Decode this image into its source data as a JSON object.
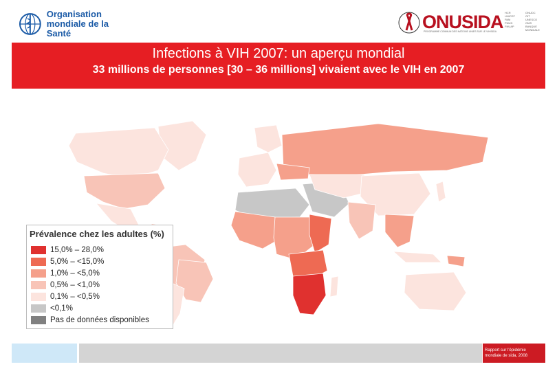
{
  "logos": {
    "who_line1": "Organisation",
    "who_line2": "mondiale de la Santé",
    "unaids_wordmark": "ONUSIDA",
    "unaids_tagline": "PROGRAMME COMMUN DES NATIONS UNIES SUR LE VIH/SIDA",
    "unaids_sponsors": [
      "HCR",
      "UNICEF",
      "PAM",
      "PNUD",
      "FNUAP",
      "ONUDC",
      "OIT",
      "UNESCO",
      "OMS",
      "BANQUE MONDIALE"
    ]
  },
  "banner": {
    "title": "Infections à VIH 2007: un aperçu mondial",
    "subtitle": "33 millions de personnes [30 – 36 millions] vivaient avec le VIH en 2007"
  },
  "legend": {
    "title": "Prévalence chez les adultes (%)",
    "items": [
      {
        "label": "15,0% – 28,0%",
        "color": "#e0312f"
      },
      {
        "label": "5,0% – <15,0%",
        "color": "#ee6a53"
      },
      {
        "label": "1,0% – <5,0%",
        "color": "#f5a08b"
      },
      {
        "label": "0,5% – <1,0%",
        "color": "#f8c4b7"
      },
      {
        "label": "0,1% – <0,5%",
        "color": "#fce4de"
      },
      {
        "label": "<0,1%",
        "color": "#c7c7c7"
      },
      {
        "label": "Pas de données disponibles",
        "color": "#808080"
      }
    ]
  },
  "footer": {
    "source_line1": "Rapport sur l'épidémie",
    "source_line2": "mondiale de sida, 2008"
  }
}
